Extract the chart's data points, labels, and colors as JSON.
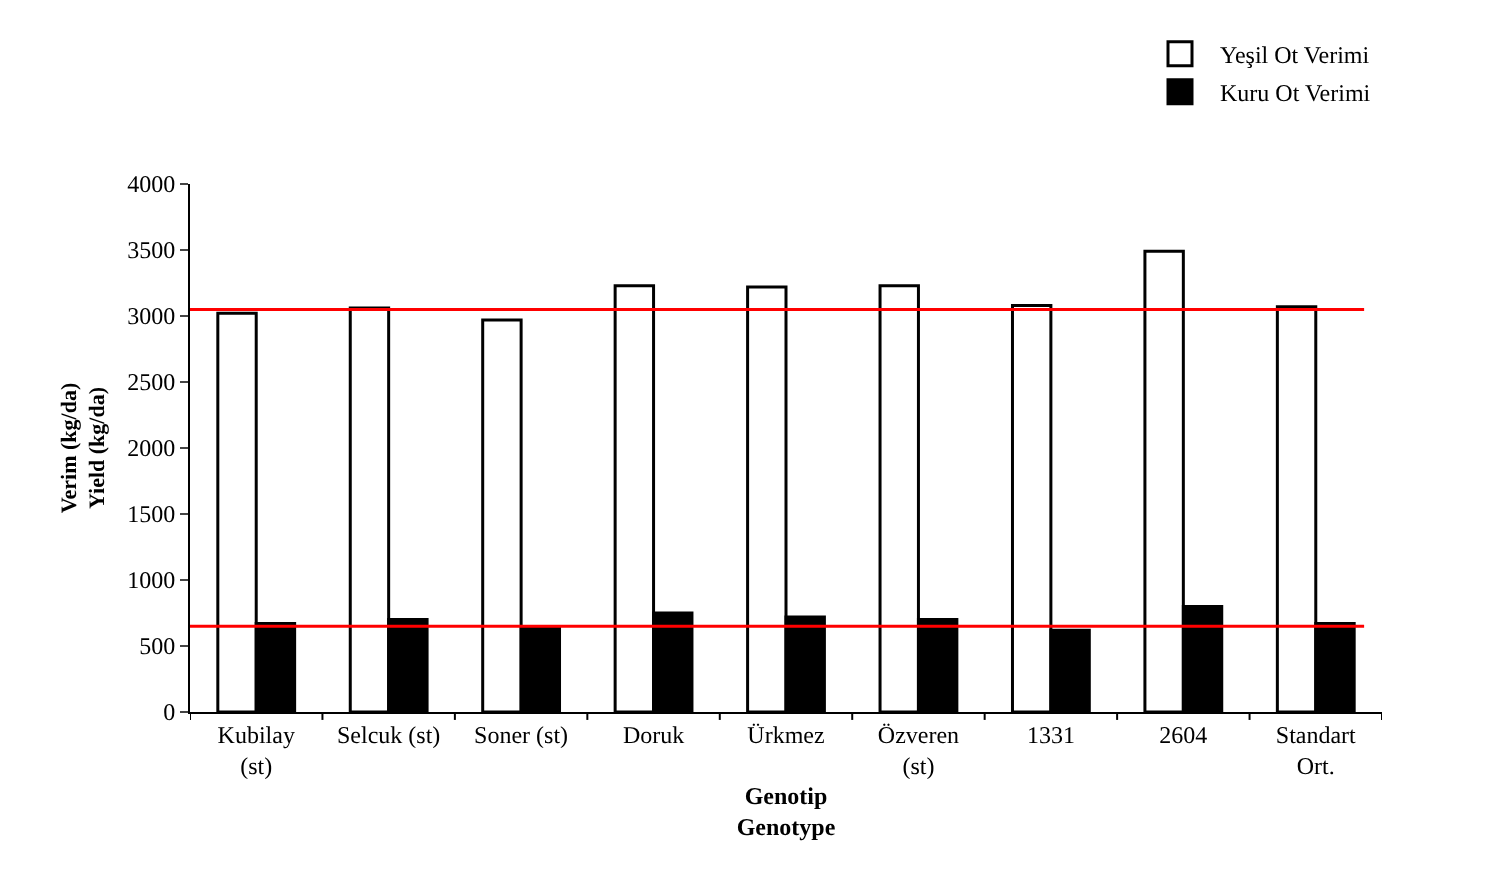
{
  "chart_data": {
    "type": "bar",
    "categories": [
      "Kubilay (st)",
      "Selcuk (st)",
      "Soner (st)",
      "Doruk",
      "Ürkmez",
      "Özveren (st)",
      "1331",
      "2604",
      "Standart Ort."
    ],
    "series": [
      {
        "name": "Yeşil Ot Verimi",
        "color": "#ffffff",
        "values": [
          3020,
          3060,
          2970,
          3230,
          3220,
          3230,
          3080,
          3490,
          3070
        ]
      },
      {
        "name": "Kuru Ot Verimi",
        "color": "#000000",
        "values": [
          670,
          700,
          640,
          750,
          720,
          700,
          620,
          800,
          670
        ]
      }
    ],
    "xlabel": "Genotip\nGenotype",
    "ylabel": "Verim (kg/da)\nYield (kg/da)",
    "ylim": [
      0,
      4000
    ],
    "yticks": [
      0,
      500,
      1000,
      1500,
      2000,
      2500,
      3000,
      3500,
      4000
    ],
    "ref_lines": [
      {
        "axis": "y",
        "value": 3050,
        "color": "#ff0000"
      },
      {
        "axis": "y",
        "value": 650,
        "color": "#ff0000"
      }
    ],
    "legend": "top right"
  }
}
